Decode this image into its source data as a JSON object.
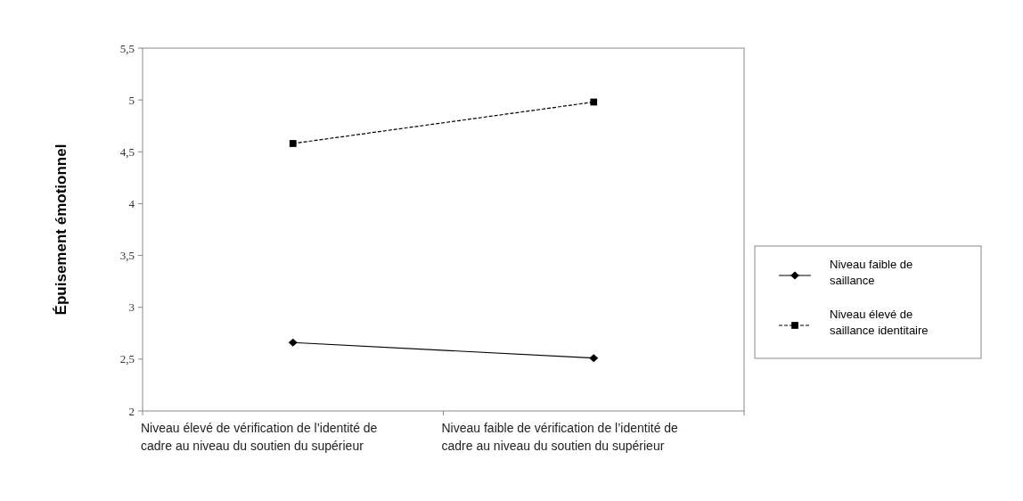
{
  "chart_data": {
    "type": "line",
    "ylabel": "Épuisement émotionnel",
    "categories": [
      "Niveau élevé de vérification de l’identité de cadre au niveau du soutien du supérieur",
      "Niveau faible de vérification de l’identité de cadre au niveau du soutien du supérieur"
    ],
    "series": [
      {
        "name": "Niveau faible de saillance",
        "color": "#000000",
        "values": [
          2.66,
          2.51
        ],
        "marker": "diamond",
        "line_style": "solid"
      },
      {
        "name": "Niveau élevé de saillance identitaire",
        "color": "#000000",
        "values": [
          4.58,
          4.98
        ],
        "marker": "square",
        "line_style": "dashed"
      }
    ],
    "ylim": [
      2,
      5.5
    ],
    "yticks": [
      {
        "value": 2,
        "label": "2"
      },
      {
        "value": 2.5,
        "label": "2,5"
      },
      {
        "value": 3,
        "label": "3"
      },
      {
        "value": 3.5,
        "label": "3,5"
      },
      {
        "value": 4,
        "label": "4"
      },
      {
        "value": 4.5,
        "label": "4,5"
      },
      {
        "value": 5,
        "label": "5"
      },
      {
        "value": 5.5,
        "label": "5,5"
      }
    ],
    "grid": false,
    "legend": "right"
  }
}
